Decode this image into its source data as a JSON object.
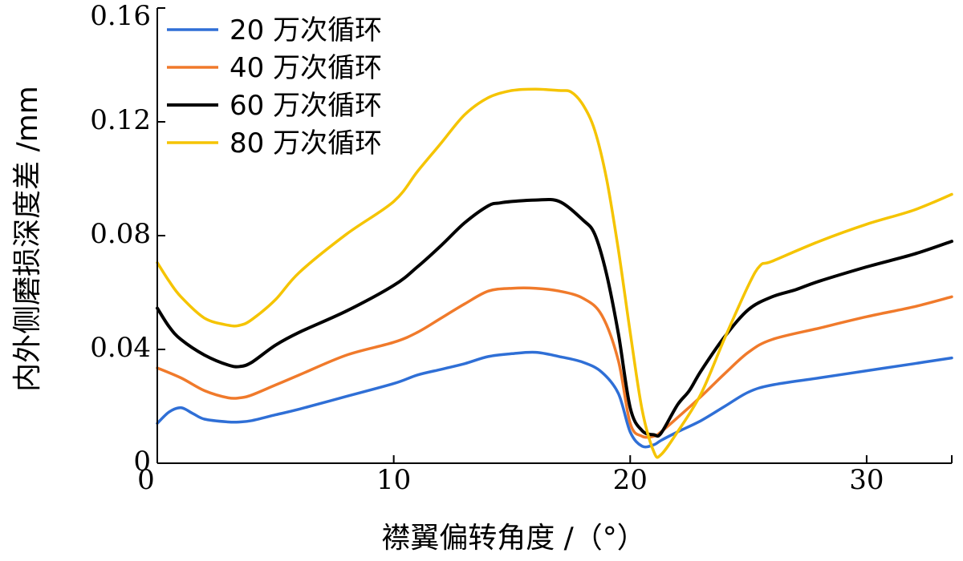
{
  "chart_data": {
    "type": "line",
    "title": "",
    "xlabel": "襟翼偏转角度 /（°）",
    "ylabel": "内外侧磨损深度差 /mm",
    "xlim": [
      0,
      33.6
    ],
    "ylim": [
      0,
      0.16
    ],
    "xticks": [
      0,
      10,
      20,
      30
    ],
    "xtick_labels": [
      "0",
      "10",
      "20",
      "30"
    ],
    "yticks": [
      0,
      0.04,
      0.08,
      0.12,
      0.16
    ],
    "ytick_labels": [
      "0",
      "0.04",
      "0.08",
      "0.12",
      "0.16"
    ],
    "legend_position": "top-left",
    "grid": false,
    "series": [
      {
        "name": "20 万次循环",
        "color": "#2f6fd6",
        "x": [
          0,
          0.5,
          1,
          1.5,
          2,
          3,
          3.5,
          4,
          5,
          6,
          8,
          10,
          11,
          12,
          13,
          14,
          15,
          16,
          17,
          18,
          18.8,
          19.5,
          20,
          20.5,
          21,
          21.3,
          22,
          23,
          24,
          25,
          26,
          28,
          30,
          32,
          33.6
        ],
        "values": [
          0.014,
          0.018,
          0.0195,
          0.0175,
          0.0155,
          0.0145,
          0.0145,
          0.015,
          0.017,
          0.019,
          0.0235,
          0.028,
          0.031,
          0.033,
          0.035,
          0.0375,
          0.0385,
          0.039,
          0.0375,
          0.0355,
          0.032,
          0.0245,
          0.011,
          0.006,
          0.0065,
          0.008,
          0.011,
          0.015,
          0.02,
          0.025,
          0.0275,
          0.03,
          0.0325,
          0.035,
          0.037
        ]
      },
      {
        "name": "40 万次循环",
        "color": "#f07a2b",
        "x": [
          0,
          1,
          2,
          3,
          3.5,
          4,
          5,
          6,
          8,
          10,
          11,
          12,
          13,
          14,
          15,
          16,
          17,
          18,
          18.8,
          19.5,
          20,
          20.5,
          21,
          21.3,
          22,
          23,
          24,
          25,
          26,
          28,
          30,
          32,
          33.6
        ],
        "values": [
          0.0335,
          0.03,
          0.0255,
          0.023,
          0.023,
          0.024,
          0.0275,
          0.031,
          0.038,
          0.0425,
          0.046,
          0.051,
          0.056,
          0.0605,
          0.0615,
          0.0615,
          0.0605,
          0.058,
          0.052,
          0.036,
          0.014,
          0.0095,
          0.0095,
          0.011,
          0.016,
          0.0235,
          0.0315,
          0.039,
          0.0435,
          0.0475,
          0.0515,
          0.055,
          0.0585
        ]
      },
      {
        "name": "60 万次循环",
        "color": "#000000",
        "x": [
          0,
          0.5,
          1,
          2,
          3,
          3.5,
          4,
          5,
          6,
          8,
          10,
          11,
          12,
          13,
          14,
          14.5,
          15,
          16,
          17,
          18,
          18.5,
          19,
          19.5,
          20,
          20.5,
          21,
          21.3,
          22,
          22.5,
          23,
          24,
          25,
          26,
          27,
          28,
          30,
          32,
          33.6
        ],
        "values": [
          0.0545,
          0.048,
          0.0435,
          0.038,
          0.0345,
          0.034,
          0.0355,
          0.0415,
          0.046,
          0.0535,
          0.0625,
          0.069,
          0.0765,
          0.0845,
          0.0905,
          0.0915,
          0.092,
          0.0925,
          0.092,
          0.0855,
          0.0805,
          0.0665,
          0.0455,
          0.0195,
          0.0115,
          0.01,
          0.0105,
          0.0205,
          0.0255,
          0.0325,
          0.0445,
          0.054,
          0.0585,
          0.061,
          0.064,
          0.069,
          0.0735,
          0.078
        ]
      },
      {
        "name": "80 万次循环",
        "color": "#f5c400",
        "x": [
          0,
          0.5,
          1,
          2,
          3,
          3.5,
          4,
          5,
          6,
          8,
          10,
          11,
          12,
          13,
          14,
          15,
          16,
          17,
          17.5,
          18,
          18.5,
          19,
          19.5,
          20,
          20.5,
          21,
          21.3,
          22,
          23,
          24,
          25,
          25.5,
          26,
          28,
          30,
          32,
          33.6
        ],
        "values": [
          0.0705,
          0.064,
          0.0585,
          0.051,
          0.0485,
          0.0485,
          0.0505,
          0.0575,
          0.067,
          0.0805,
          0.092,
          0.1025,
          0.1125,
          0.1225,
          0.1285,
          0.131,
          0.1315,
          0.131,
          0.1305,
          0.126,
          0.117,
          0.1,
          0.075,
          0.046,
          0.019,
          0.004,
          0.003,
          0.011,
          0.0245,
          0.044,
          0.0625,
          0.0695,
          0.071,
          0.078,
          0.084,
          0.089,
          0.0945
        ]
      }
    ]
  }
}
